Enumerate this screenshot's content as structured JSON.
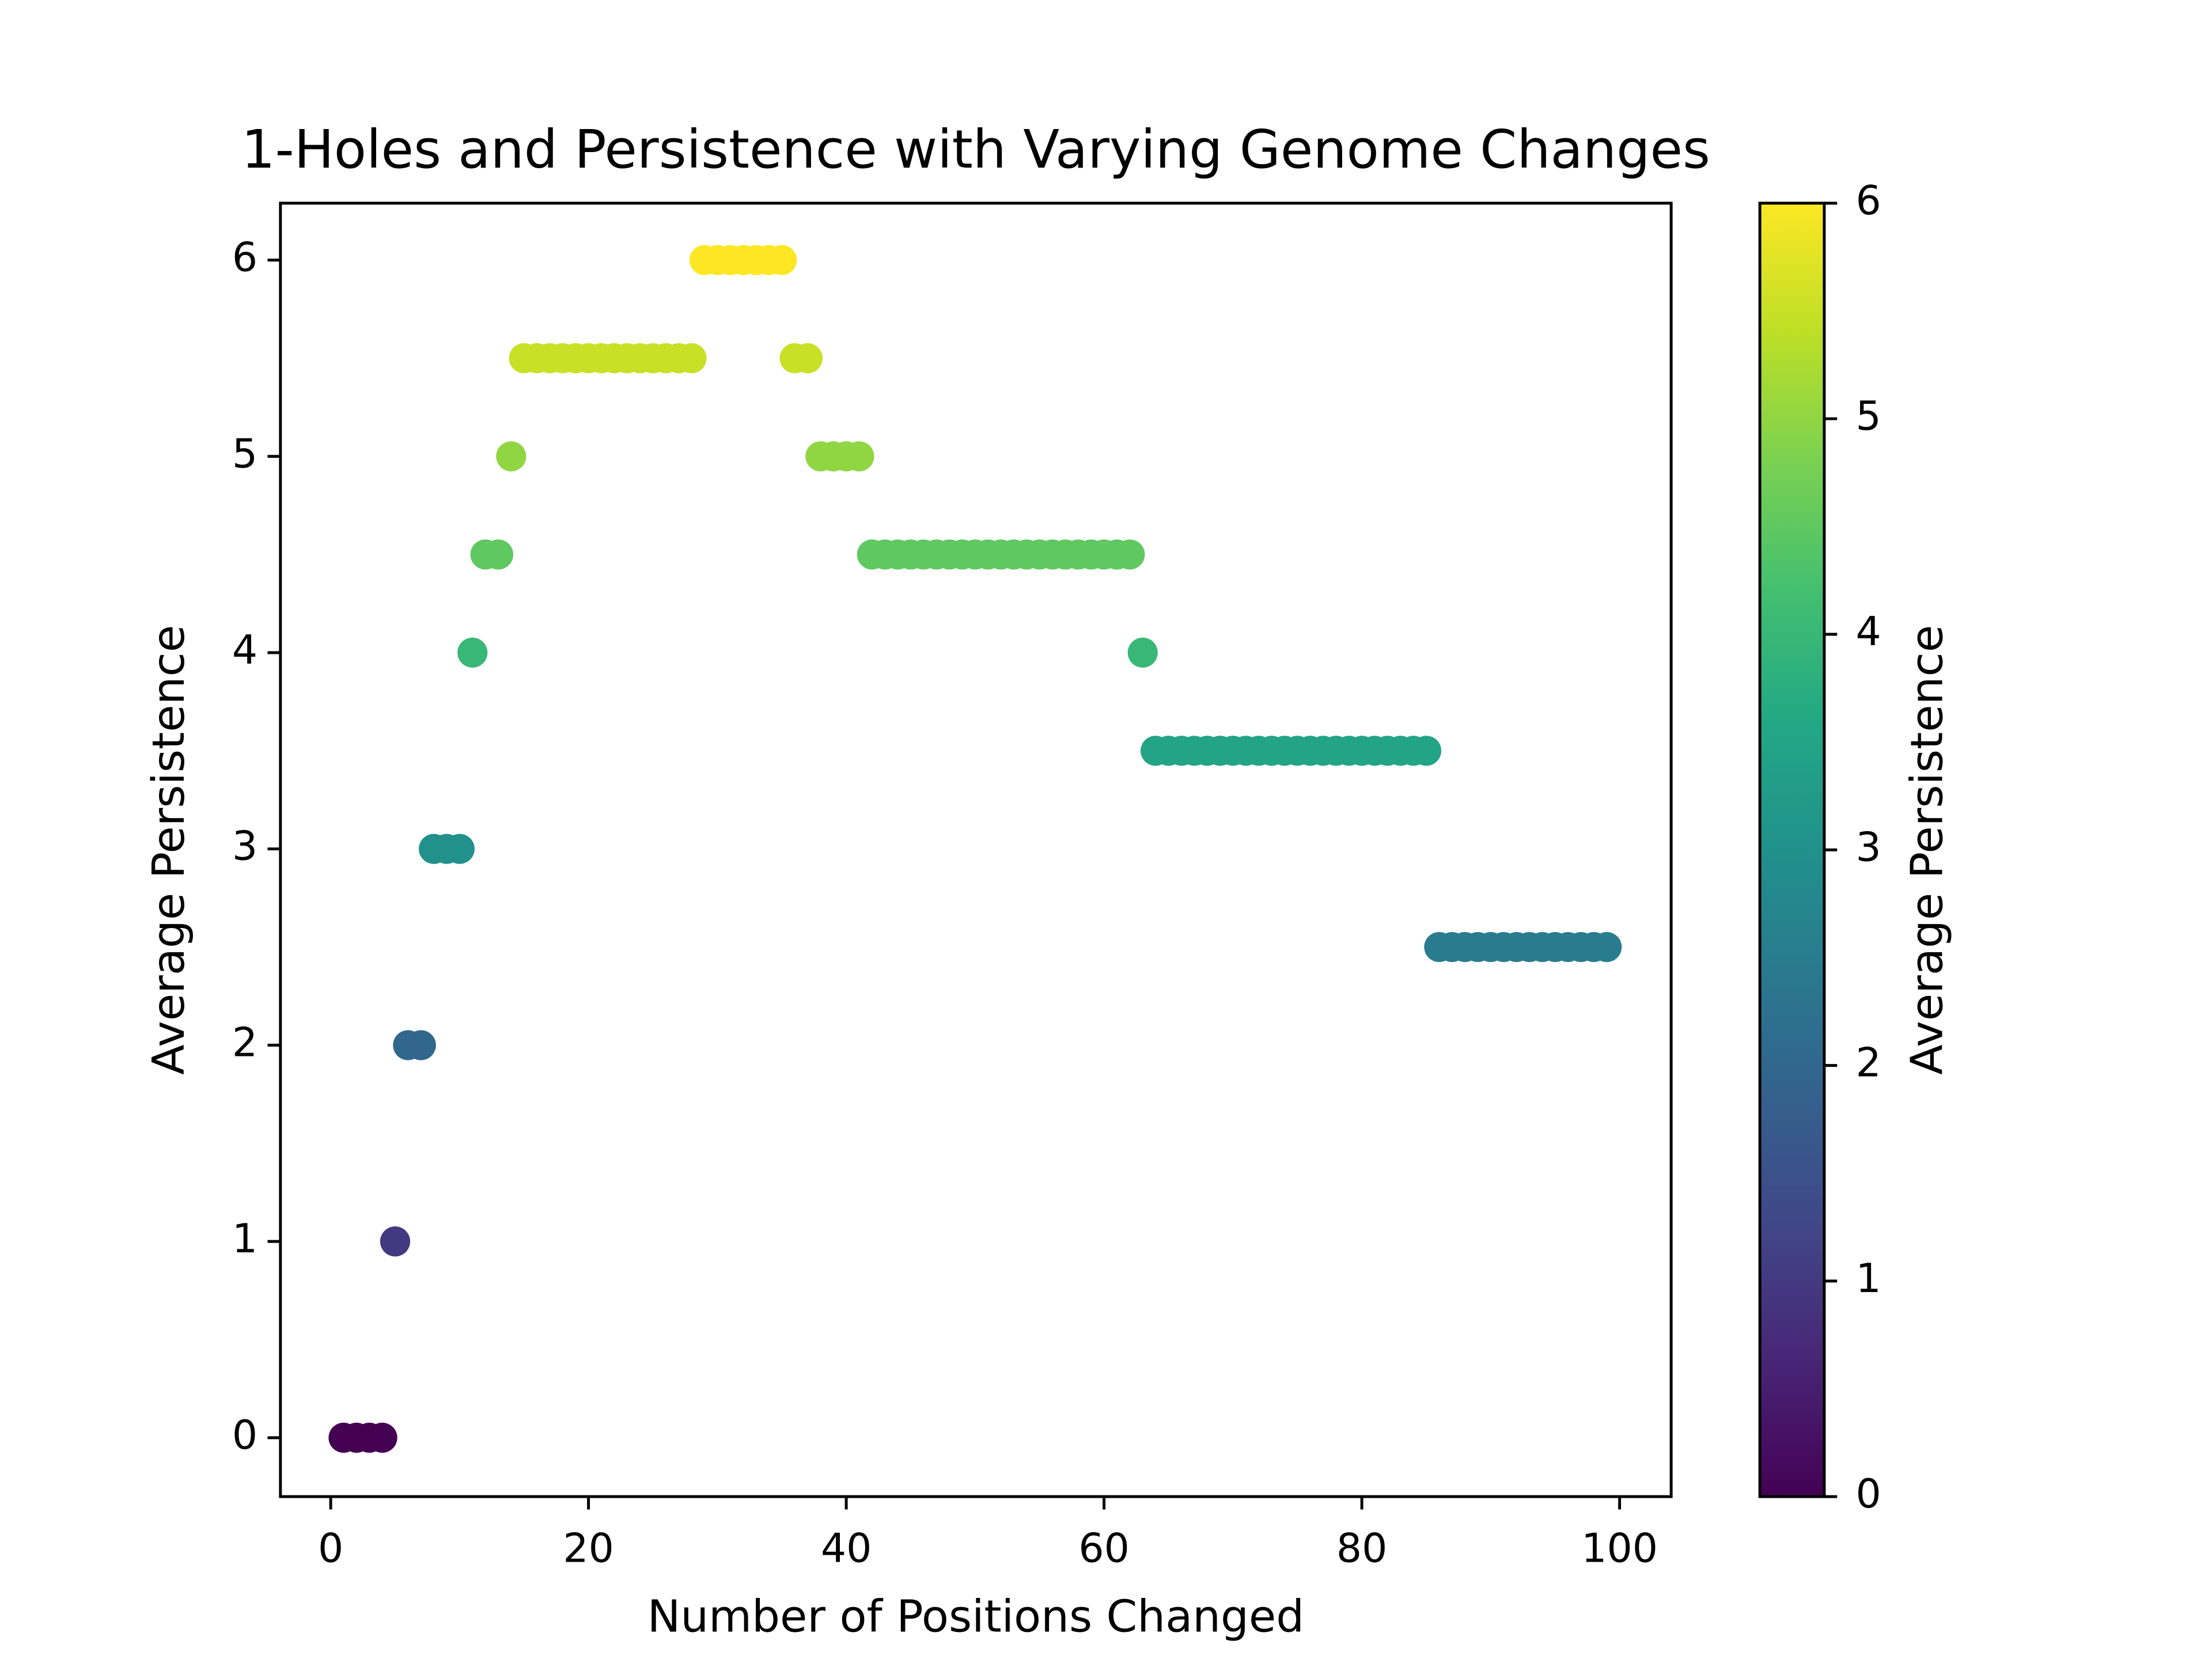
{
  "chart_data": {
    "type": "scatter",
    "title": "1-Holes and Persistence with Varying Genome Changes",
    "xlabel": "Number of Positions Changed",
    "ylabel": "Average Persistence",
    "colorbar_label": "Average Persistence",
    "colormap": "viridis",
    "x": [
      1,
      2,
      3,
      4,
      5,
      6,
      7,
      8,
      9,
      10,
      11,
      12,
      13,
      14,
      15,
      16,
      17,
      18,
      19,
      20,
      21,
      22,
      23,
      24,
      25,
      26,
      27,
      28,
      29,
      30,
      31,
      32,
      33,
      34,
      35,
      36,
      37,
      38,
      39,
      40,
      41,
      42,
      43,
      44,
      45,
      46,
      47,
      48,
      49,
      50,
      51,
      52,
      53,
      54,
      55,
      56,
      57,
      58,
      59,
      60,
      61,
      62,
      63,
      64,
      65,
      66,
      67,
      68,
      69,
      70,
      71,
      72,
      73,
      74,
      75,
      76,
      77,
      78,
      79,
      80,
      81,
      82,
      83,
      84,
      85,
      86,
      87,
      88,
      89,
      90,
      91,
      92,
      93,
      94,
      95,
      96,
      97,
      98,
      99
    ],
    "values": [
      0,
      0,
      0,
      0,
      1,
      2,
      2,
      3,
      3,
      3,
      4,
      4.5,
      4.5,
      5,
      5.5,
      5.5,
      5.5,
      5.5,
      5.5,
      5.5,
      5.5,
      5.5,
      5.5,
      5.5,
      5.5,
      5.5,
      5.5,
      5.5,
      6,
      6,
      6,
      6,
      6,
      6,
      6,
      5.5,
      5.5,
      5,
      5,
      5,
      5,
      4.5,
      4.5,
      4.5,
      4.5,
      4.5,
      4.5,
      4.5,
      4.5,
      4.5,
      4.5,
      4.5,
      4.5,
      4.5,
      4.5,
      4.5,
      4.5,
      4.5,
      4.5,
      4.5,
      4.5,
      4.5,
      4,
      3.5,
      3.5,
      3.5,
      3.5,
      3.5,
      3.5,
      3.5,
      3.5,
      3.5,
      3.5,
      3.5,
      3.5,
      3.5,
      3.5,
      3.5,
      3.5,
      3.5,
      3.5,
      3.5,
      3.5,
      3.5,
      3.5,
      2.5,
      2.5,
      2.5,
      2.5,
      2.5,
      2.5,
      2.5,
      2.5,
      2.5,
      2.5,
      2.5,
      2.5,
      2.5,
      2.5
    ],
    "xlim": [
      -3.9,
      104
    ],
    "xticks": [
      0,
      20,
      40,
      60,
      80,
      100
    ],
    "ylim": [
      -0.3,
      6.29
    ],
    "yticks": [
      0,
      1,
      2,
      3,
      4,
      5,
      6
    ],
    "clim": [
      0,
      6
    ],
    "cticks": [
      0,
      1,
      2,
      3,
      4,
      5,
      6
    ]
  }
}
